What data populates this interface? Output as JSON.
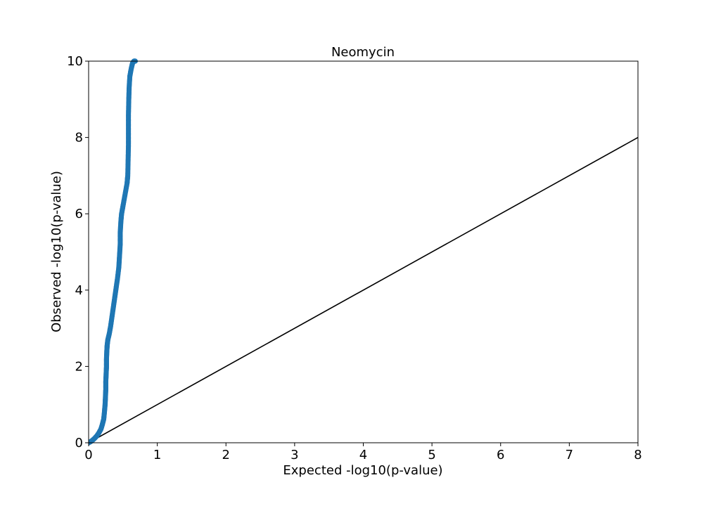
{
  "chart_data": {
    "type": "scatter",
    "title": "Neomycin",
    "xlabel": "Expected -log10(p-value)",
    "ylabel": "Observed -log10(p-value)",
    "xlim": [
      0,
      8
    ],
    "ylim": [
      0,
      10
    ],
    "xticks": [
      "0",
      "1",
      "2",
      "3",
      "4",
      "5",
      "6",
      "7",
      "8"
    ],
    "yticks": [
      "0",
      "2",
      "4",
      "6",
      "8",
      "10"
    ],
    "grid": false,
    "series": [
      {
        "marker_color": "#1f77b4",
        "x": [
          0.0,
          0.03,
          0.06,
          0.09,
          0.12,
          0.15,
          0.18,
          0.2,
          0.22,
          0.23,
          0.24,
          0.245,
          0.25,
          0.25,
          0.255,
          0.26,
          0.26,
          0.265,
          0.27,
          0.28,
          0.3,
          0.32,
          0.34,
          0.36,
          0.38,
          0.4,
          0.42,
          0.44,
          0.45,
          0.46,
          0.46,
          0.47,
          0.48,
          0.5,
          0.53,
          0.56,
          0.57,
          0.575,
          0.58,
          0.58,
          0.58,
          0.585,
          0.59,
          0.6,
          0.62,
          0.64,
          0.66,
          0.68
        ],
        "y": [
          0.0,
          0.03,
          0.07,
          0.12,
          0.18,
          0.26,
          0.36,
          0.48,
          0.62,
          0.8,
          1.0,
          1.2,
          1.4,
          1.6,
          1.8,
          2.0,
          2.2,
          2.4,
          2.55,
          2.7,
          2.85,
          3.05,
          3.3,
          3.55,
          3.8,
          4.05,
          4.3,
          4.6,
          4.9,
          5.2,
          5.5,
          5.8,
          6.0,
          6.2,
          6.5,
          6.8,
          7.0,
          7.4,
          7.8,
          8.2,
          8.6,
          9.0,
          9.3,
          9.6,
          9.8,
          9.95,
          10.0,
          10.0
        ]
      },
      {
        "type": "line",
        "line_color": "#000000",
        "x": [
          0,
          8
        ],
        "y": [
          0,
          8
        ]
      }
    ]
  }
}
